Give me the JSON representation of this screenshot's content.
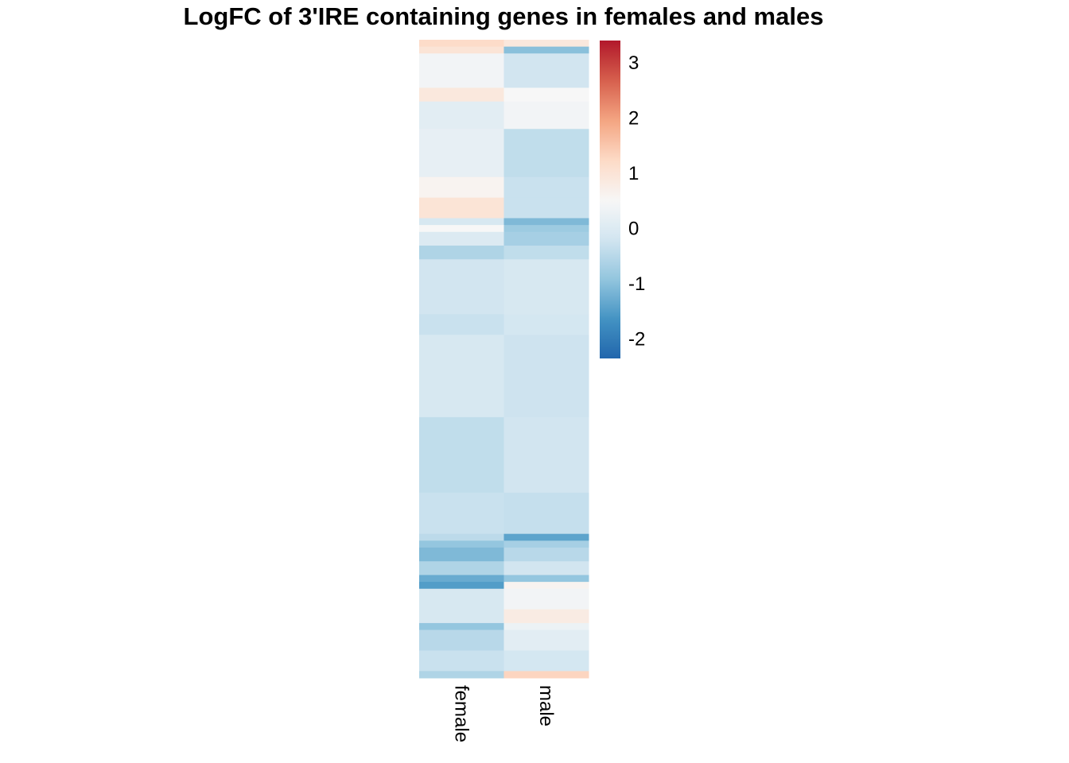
{
  "chart_data": {
    "type": "heatmap",
    "title": "LogFC of 3'IRE containing genes in females and males",
    "columns": [
      "female",
      "male"
    ],
    "legend": {
      "ticks": [
        3,
        2,
        1,
        0,
        -1,
        -2
      ],
      "tick_labels": [
        "3",
        "2",
        "1",
        "0",
        "-1",
        "-2"
      ],
      "range": [
        -2.35,
        3.4
      ],
      "colors": [
        "#2166ac",
        "#4393c3",
        "#92c5de",
        "#d1e5f0",
        "#f7f7f7",
        "#fddbc7",
        "#f4a582",
        "#d6604d",
        "#b2182b"
      ],
      "placement": "right"
    },
    "row_blocks": [
      {
        "rows": 3,
        "female": 1.2,
        "male": 0.9
      },
      {
        "rows": 3,
        "female": 1.0,
        "male": -1.0
      },
      {
        "rows": 15,
        "female": 0.4,
        "male": -0.2
      },
      {
        "rows": 6,
        "female": 0.9,
        "male": 0.5
      },
      {
        "rows": 12,
        "female": 0.1,
        "male": 0.4
      },
      {
        "rows": 21,
        "female": 0.2,
        "male": -0.4
      },
      {
        "rows": 9,
        "female": 0.6,
        "male": -0.3
      },
      {
        "rows": 9,
        "female": 1.0,
        "male": -0.3
      },
      {
        "rows": 3,
        "female": -0.1,
        "male": -1.1
      },
      {
        "rows": 3,
        "female": 0.5,
        "male": -0.8
      },
      {
        "rows": 6,
        "female": 0.0,
        "male": -0.7
      },
      {
        "rows": 6,
        "female": -0.6,
        "male": -0.4
      },
      {
        "rows": 24,
        "female": -0.2,
        "male": -0.1
      },
      {
        "rows": 9,
        "female": -0.3,
        "male": -0.15
      },
      {
        "rows": 36,
        "female": -0.1,
        "male": -0.25
      },
      {
        "rows": 33,
        "female": -0.4,
        "male": -0.2
      },
      {
        "rows": 18,
        "female": -0.3,
        "male": -0.35
      },
      {
        "rows": 3,
        "female": -0.45,
        "male": -1.4
      },
      {
        "rows": 3,
        "female": -0.9,
        "male": -0.7
      },
      {
        "rows": 6,
        "female": -1.1,
        "male": -0.5
      },
      {
        "rows": 6,
        "female": -0.6,
        "male": -0.2
      },
      {
        "rows": 3,
        "female": -1.3,
        "male": -0.9
      },
      {
        "rows": 3,
        "female": -1.5,
        "male": 0.6
      },
      {
        "rows": 9,
        "female": -0.1,
        "male": 0.4
      },
      {
        "rows": 6,
        "female": -0.1,
        "male": 0.8
      },
      {
        "rows": 3,
        "female": -0.9,
        "male": 0.3
      },
      {
        "rows": 9,
        "female": -0.5,
        "male": 0.1
      },
      {
        "rows": 9,
        "female": -0.3,
        "male": -0.15
      },
      {
        "rows": 3,
        "female": -0.6,
        "male": 1.3
      }
    ]
  }
}
